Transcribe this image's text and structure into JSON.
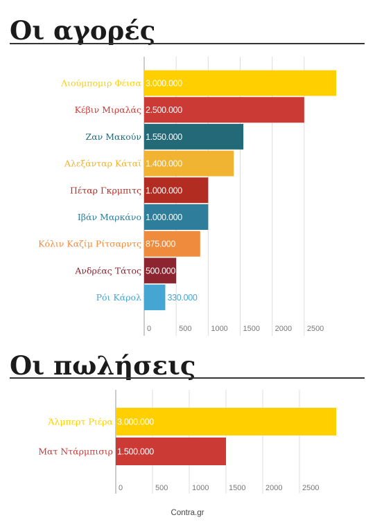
{
  "buys": {
    "heading": "Οι αγορές",
    "chart_data": {
      "type": "bar",
      "orientation": "horizontal",
      "categories": [
        "Λιούμπομιρ Φέισα",
        "Κέβιν Μιραλάς",
        "Ζαν Μακούν",
        "Αλεξάνταρ Κάταϊ",
        "Πέταρ Γκρμπιτς",
        "Ιβάν Μαρκάνο",
        "Κόλιν Καζίμ Ρίτσαρντς",
        "Ανδρέας Τάτος",
        "Ρόι Κάρολ"
      ],
      "values": [
        3000000,
        2500000,
        1550000,
        1400000,
        1000000,
        1000000,
        875000,
        500000,
        330000
      ],
      "value_labels": [
        "3.000.000",
        "2.500.000",
        "1.550.000",
        "1.400.000",
        "1.000.000",
        "1.000.000",
        "875.000",
        "500.000",
        "330.000"
      ],
      "colors": [
        "#ffcf00",
        "#cc3a35",
        "#246978",
        "#f0b332",
        "#b32c22",
        "#2e7d9b",
        "#ef8b3c",
        "#8c2530",
        "#45a5d3"
      ],
      "x_ticks": [
        "0",
        "500",
        "1000",
        "1500",
        "2000",
        "2500"
      ],
      "tick_step_value": 500000,
      "xlim": [
        0,
        3000000
      ],
      "grid": true
    }
  },
  "sales": {
    "heading": "Οι πωλήσεις",
    "chart_data": {
      "type": "bar",
      "orientation": "horizontal",
      "categories": [
        "Άλμπερτ Ριέρα",
        "Ματ Ντάρμπισιρ"
      ],
      "values": [
        3000000,
        1500000
      ],
      "value_labels": [
        "3.000.000",
        "1.500.000"
      ],
      "colors": [
        "#ffcf00",
        "#cc3a35"
      ],
      "x_ticks": [
        "0",
        "500",
        "1000",
        "1500",
        "2000",
        "2500"
      ],
      "tick_step_value": 500000,
      "xlim": [
        0,
        3000000
      ],
      "grid": true
    }
  },
  "source": "Contra.gr"
}
